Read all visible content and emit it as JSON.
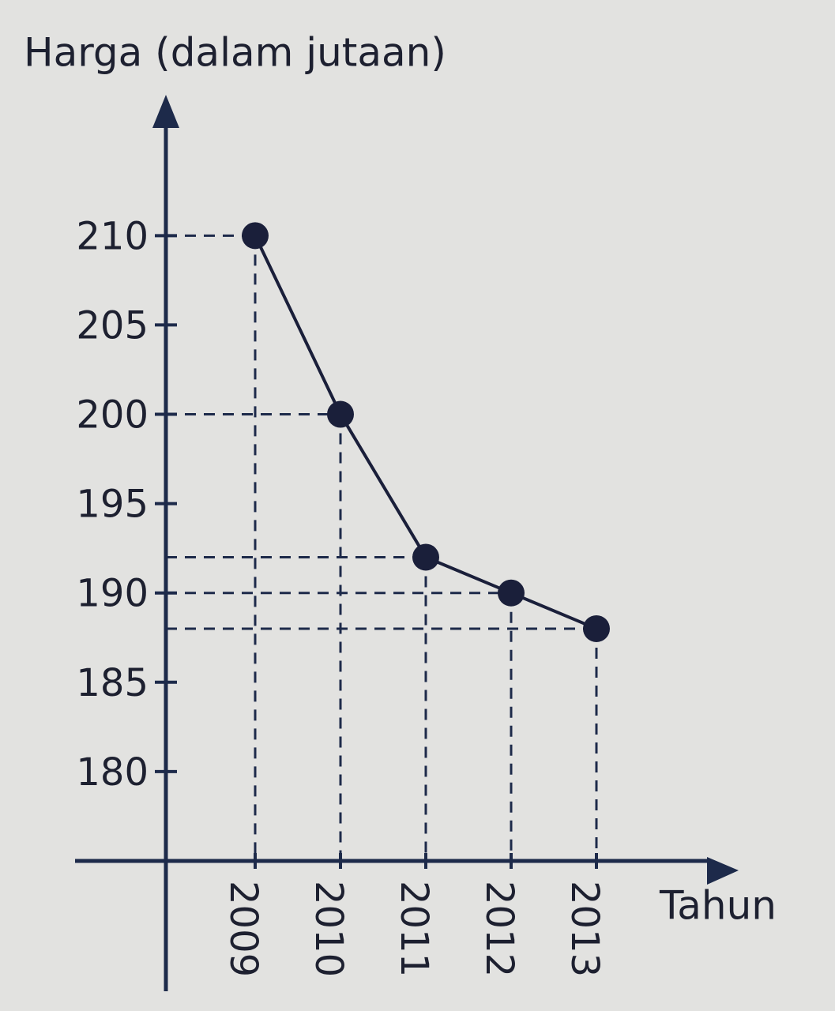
{
  "chart_data": {
    "type": "line",
    "title": "Harga (dalam jutaan)",
    "x_label": "Tahun",
    "categories": [
      "2009",
      "2010",
      "2011",
      "2012",
      "2013"
    ],
    "values": [
      210,
      200,
      192,
      190,
      188
    ],
    "color": "#1a1f3a",
    "ylim": [
      175,
      217
    ],
    "yticks": [
      180,
      185,
      190,
      195,
      200,
      205,
      210
    ],
    "guide_lines": true
  }
}
